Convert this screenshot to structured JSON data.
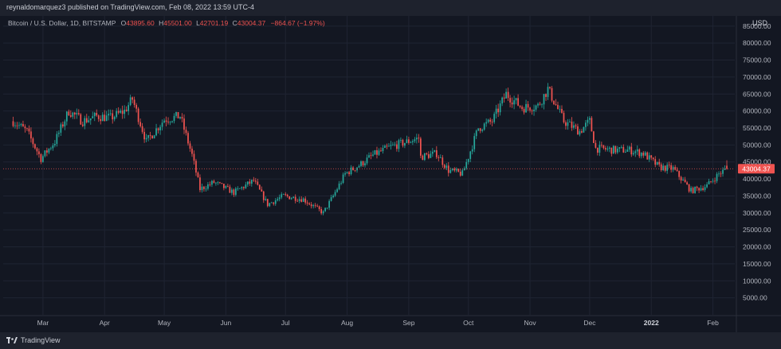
{
  "header": {
    "publish_line": "reynaldomarquez3 published on TradingView.com, Feb 08, 2022 13:59 UTC-4"
  },
  "legend": {
    "symbol": "Bitcoin / U.S. Dollar, 1D, BITSTAMP",
    "o_label": "O",
    "o_value": "43895.60",
    "h_label": "H",
    "h_value": "45501.00",
    "l_label": "L",
    "l_value": "42701.19",
    "c_label": "C",
    "c_value": "43004.37",
    "change": "−864.67 (−1.97%)"
  },
  "currency": "USD",
  "footer": {
    "brand": "TradingView"
  },
  "colors": {
    "background": "#131722",
    "grid": "#1f2432",
    "up": "#26a69a",
    "down": "#ef5350",
    "text": "#b2b5be",
    "price_line": "#ef5350",
    "price_label_bg": "#ef5350"
  },
  "chart_data": {
    "type": "candlestick",
    "ylim": [
      0,
      88000
    ],
    "y_ticks": [
      "5000.00",
      "10000.00",
      "15000.00",
      "20000.00",
      "25000.00",
      "30000.00",
      "35000.00",
      "40000.00",
      "45000.00",
      "50000.00",
      "55000.00",
      "60000.00",
      "65000.00",
      "70000.00",
      "75000.00",
      "80000.00",
      "85000.00"
    ],
    "x_ticks": [
      "Mar",
      "Apr",
      "May",
      "Jun",
      "Jul",
      "Aug",
      "Sep",
      "Oct",
      "Nov",
      "Dec",
      "2022",
      "Feb"
    ],
    "last_price": 43004.37,
    "last_price_label": "43004.37",
    "series": [
      {
        "date": "2021-02-14",
        "close": 57000
      },
      {
        "date": "2021-02-21",
        "close": 54000
      },
      {
        "date": "2021-02-28",
        "close": 46000
      },
      {
        "date": "2021-03-07",
        "close": 51000
      },
      {
        "date": "2021-03-14",
        "close": 60000
      },
      {
        "date": "2021-03-21",
        "close": 57000
      },
      {
        "date": "2021-03-28",
        "close": 58500
      },
      {
        "date": "2021-04-04",
        "close": 58000
      },
      {
        "date": "2021-04-11",
        "close": 60000
      },
      {
        "date": "2021-04-15",
        "close": 63500
      },
      {
        "date": "2021-04-22",
        "close": 51000
      },
      {
        "date": "2021-05-01",
        "close": 57500
      },
      {
        "date": "2021-05-09",
        "close": 58500
      },
      {
        "date": "2021-05-15",
        "close": 47000
      },
      {
        "date": "2021-05-19",
        "close": 37000
      },
      {
        "date": "2021-05-26",
        "close": 39000
      },
      {
        "date": "2021-06-05",
        "close": 36000
      },
      {
        "date": "2021-06-15",
        "close": 39500
      },
      {
        "date": "2021-06-22",
        "close": 32500
      },
      {
        "date": "2021-06-30",
        "close": 35000
      },
      {
        "date": "2021-07-10",
        "close": 34000
      },
      {
        "date": "2021-07-20",
        "close": 30000
      },
      {
        "date": "2021-07-25",
        "close": 35000
      },
      {
        "date": "2021-07-31",
        "close": 41500
      },
      {
        "date": "2021-08-07",
        "close": 44000
      },
      {
        "date": "2021-08-14",
        "close": 47000
      },
      {
        "date": "2021-08-23",
        "close": 49500
      },
      {
        "date": "2021-09-06",
        "close": 52000
      },
      {
        "date": "2021-09-07",
        "close": 46500
      },
      {
        "date": "2021-09-15",
        "close": 47500
      },
      {
        "date": "2021-09-21",
        "close": 42500
      },
      {
        "date": "2021-09-28",
        "close": 41500
      },
      {
        "date": "2021-10-06",
        "close": 55000
      },
      {
        "date": "2021-10-13",
        "close": 57000
      },
      {
        "date": "2021-10-20",
        "close": 65000
      },
      {
        "date": "2021-10-28",
        "close": 61000
      },
      {
        "date": "2021-11-05",
        "close": 61500
      },
      {
        "date": "2021-11-10",
        "close": 66500
      },
      {
        "date": "2021-11-18",
        "close": 57000
      },
      {
        "date": "2021-11-26",
        "close": 54000
      },
      {
        "date": "2021-12-01",
        "close": 57000
      },
      {
        "date": "2021-12-04",
        "close": 49000
      },
      {
        "date": "2021-12-14",
        "close": 48500
      },
      {
        "date": "2021-12-21",
        "close": 48500
      },
      {
        "date": "2021-12-28",
        "close": 47500
      },
      {
        "date": "2022-01-05",
        "close": 43500
      },
      {
        "date": "2022-01-12",
        "close": 43000
      },
      {
        "date": "2022-01-21",
        "close": 36500
      },
      {
        "date": "2022-01-29",
        "close": 38000
      },
      {
        "date": "2022-02-04",
        "close": 41500
      },
      {
        "date": "2022-02-08",
        "close": 43004.37
      }
    ]
  }
}
